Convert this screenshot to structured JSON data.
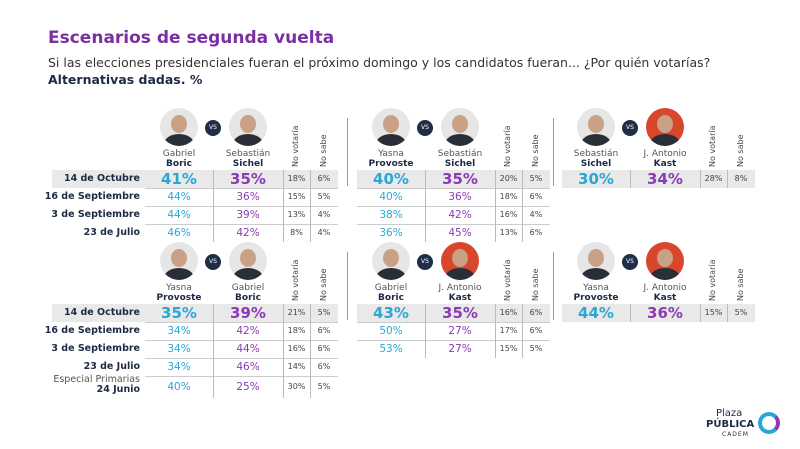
{
  "title": "Escenarios de segunda vuelta",
  "question": "Si las elecciones presidenciales fueran el próximo domingo y los candidatos fueran... ¿Por quién votarías?",
  "note": "Alternativas dadas. %",
  "vs_label": "VS",
  "col_headers": {
    "no_votaria": "No votaría",
    "no_sabe": "No sabe"
  },
  "colors": {
    "candidate1": "#2aa7d6",
    "candidate2": "#8a3bb5",
    "title": "#7b2fa0"
  },
  "panels": [
    {
      "c1": {
        "first": "Gabriel",
        "last": "Boric"
      },
      "c2": {
        "first": "Sebastián",
        "last": "Sichel"
      },
      "rows": [
        {
          "label": "14 de Octubre",
          "v1": "41%",
          "v2": "35%",
          "nv": "18%",
          "ns": "6%"
        },
        {
          "label": "16 de Septiembre",
          "v1": "44%",
          "v2": "36%",
          "nv": "15%",
          "ns": "5%"
        },
        {
          "label": "3 de Septiembre",
          "v1": "44%",
          "v2": "39%",
          "nv": "13%",
          "ns": "4%"
        },
        {
          "label": "23 de Julio",
          "v1": "46%",
          "v2": "42%",
          "nv": "8%",
          "ns": "4%"
        }
      ]
    },
    {
      "c1": {
        "first": "Yasna",
        "last": "Provoste"
      },
      "c2": {
        "first": "Sebastián",
        "last": "Sichel"
      },
      "rows": [
        {
          "v1": "40%",
          "v2": "35%",
          "nv": "20%",
          "ns": "5%"
        },
        {
          "v1": "40%",
          "v2": "36%",
          "nv": "18%",
          "ns": "6%"
        },
        {
          "v1": "38%",
          "v2": "42%",
          "nv": "16%",
          "ns": "4%"
        },
        {
          "v1": "36%",
          "v2": "45%",
          "nv": "13%",
          "ns": "6%"
        }
      ]
    },
    {
      "c1": {
        "first": "Sebastián",
        "last": "Sichel"
      },
      "c2": {
        "first": "J. Antonio",
        "last": "Kast"
      },
      "rows": [
        {
          "v1": "30%",
          "v2": "34%",
          "nv": "28%",
          "ns": "8%"
        }
      ]
    },
    {
      "c1": {
        "first": "Yasna",
        "last": "Provoste"
      },
      "c2": {
        "first": "Gabriel",
        "last": "Boric"
      },
      "rows": [
        {
          "label": "14 de Octubre",
          "v1": "35%",
          "v2": "39%",
          "nv": "21%",
          "ns": "5%"
        },
        {
          "label": "16 de Septiembre",
          "v1": "34%",
          "v2": "42%",
          "nv": "18%",
          "ns": "6%"
        },
        {
          "label": "3 de Septiembre",
          "v1": "34%",
          "v2": "44%",
          "nv": "16%",
          "ns": "6%"
        },
        {
          "label": "23 de Julio",
          "v1": "34%",
          "v2": "46%",
          "nv": "14%",
          "ns": "6%"
        },
        {
          "label_pre": "Especial Primarias",
          "label": "24 Junio",
          "v1": "40%",
          "v2": "25%",
          "nv": "30%",
          "ns": "5%"
        }
      ]
    },
    {
      "c1": {
        "first": "Gabriel",
        "last": "Boric"
      },
      "c2": {
        "first": "J. Antonio",
        "last": "Kast"
      },
      "rows": [
        {
          "v1": "43%",
          "v2": "35%",
          "nv": "16%",
          "ns": "6%"
        },
        {
          "v1": "50%",
          "v2": "27%",
          "nv": "17%",
          "ns": "6%"
        },
        {
          "v1": "53%",
          "v2": "27%",
          "nv": "15%",
          "ns": "5%"
        }
      ]
    },
    {
      "c1": {
        "first": "Yasna",
        "last": "Provoste"
      },
      "c2": {
        "first": "J. Antonio",
        "last": "Kast"
      },
      "rows": [
        {
          "v1": "44%",
          "v2": "36%",
          "nv": "15%",
          "ns": "5%"
        }
      ]
    }
  ],
  "logo": {
    "line1": "Plaza",
    "line2": "PÚBLICA",
    "line3": "CADEM"
  }
}
